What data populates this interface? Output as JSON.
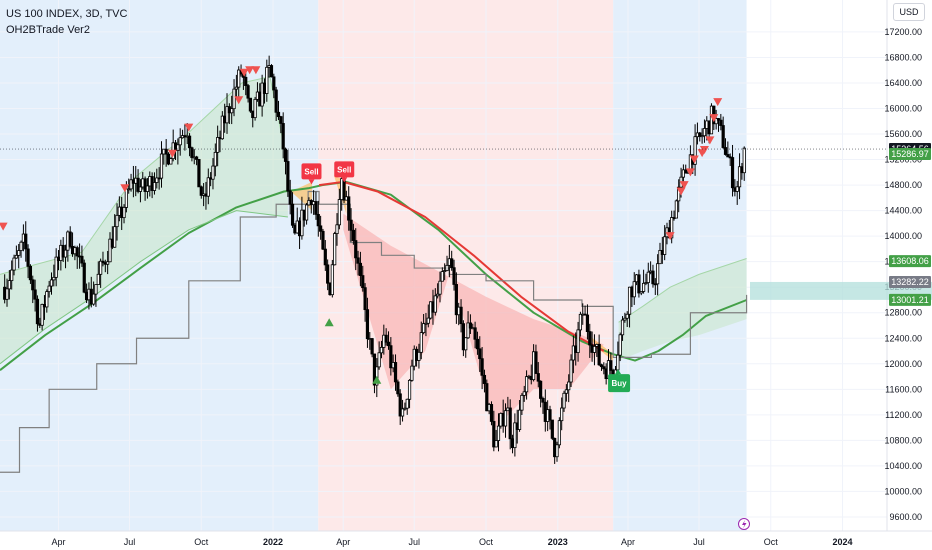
{
  "header": {
    "title": "US 100 INDEX, 3D, TVC",
    "indicator": "OH2BTrade Ver2",
    "currency": "USD"
  },
  "chart_data": {
    "type": "candlestick",
    "x_ticks": [
      {
        "label": "Apr",
        "date": "2021-04-01",
        "bold": false
      },
      {
        "label": "Jul",
        "date": "2021-07-01",
        "bold": false
      },
      {
        "label": "Oct",
        "date": "2021-10-01",
        "bold": false
      },
      {
        "label": "2022",
        "date": "2022-01-01",
        "bold": true
      },
      {
        "label": "Apr",
        "date": "2022-04-01",
        "bold": false
      },
      {
        "label": "Jul",
        "date": "2022-07-01",
        "bold": false
      },
      {
        "label": "Oct",
        "date": "2022-10-01",
        "bold": false
      },
      {
        "label": "2023",
        "date": "2023-01-01",
        "bold": true
      },
      {
        "label": "Apr",
        "date": "2023-04-01",
        "bold": false
      },
      {
        "label": "Jul",
        "date": "2023-07-01",
        "bold": false
      },
      {
        "label": "Oct",
        "date": "2023-10-01",
        "bold": false
      },
      {
        "label": "2024",
        "date": "2024-01-01",
        "bold": true
      }
    ],
    "y_ticks": [
      9600,
      10000,
      10400,
      10800,
      11200,
      11600,
      12000,
      12400,
      12800,
      13200,
      13600,
      14000,
      14400,
      14800,
      15200,
      15600,
      16000,
      16400,
      16800,
      17200
    ],
    "x_range": [
      "2021-01-16",
      "2024-02-27"
    ],
    "y_range": [
      9380,
      17700
    ],
    "background_zones": [
      {
        "start": "2021-01-16",
        "end": "2022-02-28",
        "color": "#e3effb"
      },
      {
        "start": "2022-02-28",
        "end": "2023-03-13",
        "color": "#fde9e9"
      },
      {
        "start": "2023-03-13",
        "end": "2023-08-31",
        "color": "#e3effb"
      }
    ],
    "price_path": [
      [
        "2021-01-22",
        13200
      ],
      [
        "2021-02-16",
        13900
      ],
      [
        "2021-03-08",
        12600
      ],
      [
        "2021-03-20",
        13300
      ],
      [
        "2021-04-16",
        14000
      ],
      [
        "2021-05-12",
        13000
      ],
      [
        "2021-06-01",
        13700
      ],
      [
        "2021-07-06",
        14900
      ],
      [
        "2021-07-20",
        14700
      ],
      [
        "2021-08-30",
        15500
      ],
      [
        "2021-09-13",
        15700
      ],
      [
        "2021-10-04",
        14500
      ],
      [
        "2021-10-30",
        15800
      ],
      [
        "2021-11-22",
        16600
      ],
      [
        "2021-12-03",
        15800
      ],
      [
        "2021-12-28",
        16600
      ],
      [
        "2022-01-14",
        15400
      ],
      [
        "2022-01-27",
        13900
      ],
      [
        "2022-02-20",
        14700
      ],
      [
        "2022-03-14",
        13100
      ],
      [
        "2022-03-29",
        15000
      ],
      [
        "2022-04-14",
        14000
      ],
      [
        "2022-05-12",
        11700
      ],
      [
        "2022-05-24",
        12500
      ],
      [
        "2022-06-16",
        11150
      ],
      [
        "2022-06-28",
        12000
      ],
      [
        "2022-08-16",
        13600
      ],
      [
        "2022-09-01",
        12300
      ],
      [
        "2022-09-13",
        12700
      ],
      [
        "2022-10-13",
        10700
      ],
      [
        "2022-10-27",
        11400
      ],
      [
        "2022-11-03",
        10800
      ],
      [
        "2022-12-01",
        12000
      ],
      [
        "2022-12-28",
        10700
      ],
      [
        "2023-02-02",
        12800
      ],
      [
        "2023-02-24",
        12000
      ],
      [
        "2023-03-13",
        11900
      ],
      [
        "2023-04-04",
        13200
      ],
      [
        "2023-05-04",
        13300
      ],
      [
        "2023-06-01",
        14500
      ],
      [
        "2023-06-18",
        15200
      ],
      [
        "2023-07-19",
        15900
      ],
      [
        "2023-08-01",
        15500
      ],
      [
        "2023-08-18",
        14700
      ],
      [
        "2023-08-28",
        15364
      ]
    ],
    "series": [
      {
        "name": "slow_ma",
        "color": "#43a047",
        "points": [
          [
            "2021-01-16",
            11900
          ],
          [
            "2021-03-15",
            12450
          ],
          [
            "2021-05-15",
            12950
          ],
          [
            "2021-07-15",
            13500
          ],
          [
            "2021-09-15",
            14050
          ],
          [
            "2021-11-15",
            14450
          ],
          [
            "2022-01-15",
            14700
          ],
          [
            "2022-02-15",
            14750
          ],
          [
            "2022-03-05",
            14800
          ],
          [
            "2022-04-05",
            14850
          ],
          [
            "2022-06-01",
            14650
          ],
          [
            "2022-08-01",
            14100
          ],
          [
            "2022-10-01",
            13400
          ],
          [
            "2022-12-01",
            12800
          ],
          [
            "2023-02-01",
            12350
          ],
          [
            "2023-03-13",
            12150
          ],
          [
            "2023-04-10",
            12050
          ],
          [
            "2023-05-10",
            12200
          ],
          [
            "2023-06-10",
            12450
          ],
          [
            "2023-07-10",
            12750
          ],
          [
            "2023-08-31",
            13000
          ]
        ]
      },
      {
        "name": "fast_ma",
        "color": "#e53935",
        "points": [
          [
            "2022-03-01",
            14800
          ],
          [
            "2022-04-01",
            14850
          ],
          [
            "2022-05-15",
            14700
          ],
          [
            "2022-07-15",
            14300
          ],
          [
            "2022-09-15",
            13700
          ],
          [
            "2022-11-15",
            13050
          ],
          [
            "2023-01-15",
            12500
          ],
          [
            "2023-03-01",
            12200
          ]
        ]
      },
      {
        "name": "band_upper",
        "color": "#81c784",
        "points": [
          [
            "2021-01-16",
            12000
          ],
          [
            "2021-03-15",
            12550
          ],
          [
            "2021-05-15",
            13050
          ],
          [
            "2021-07-15",
            13600
          ],
          [
            "2021-09-15",
            14100
          ],
          [
            "2021-11-15",
            14400
          ],
          [
            "2022-01-20",
            14300
          ]
        ]
      },
      {
        "name": "trailing_stop",
        "color": "#808080",
        "points": [
          [
            "2021-01-16",
            10300
          ],
          [
            "2021-02-10",
            11000
          ],
          [
            "2021-03-20",
            11600
          ],
          [
            "2021-05-20",
            12000
          ],
          [
            "2021-07-10",
            12400
          ],
          [
            "2021-09-15",
            13300
          ],
          [
            "2021-11-20",
            14300
          ],
          [
            "2022-01-05",
            14500
          ],
          [
            "2022-02-15",
            14700
          ],
          [
            "2022-03-01",
            14500
          ],
          [
            "2022-04-10",
            13900
          ],
          [
            "2022-05-20",
            13700
          ],
          [
            "2022-07-01",
            13500
          ],
          [
            "2022-08-15",
            13400
          ],
          [
            "2022-10-01",
            13300
          ],
          [
            "2022-12-01",
            13000
          ],
          [
            "2023-02-01",
            12900
          ],
          [
            "2023-03-13",
            12100
          ],
          [
            "2023-05-01",
            12150
          ],
          [
            "2023-06-20",
            12800
          ],
          [
            "2023-08-31",
            13080
          ]
        ]
      }
    ],
    "bull_cloud_1": {
      "upper": [
        [
          "2021-01-16",
          13400
        ],
        [
          "2021-03-01",
          13550
        ],
        [
          "2021-05-01",
          13750
        ],
        [
          "2021-07-06",
          14900
        ],
        [
          "2021-09-13",
          15600
        ],
        [
          "2021-11-22",
          16400
        ],
        [
          "2021-12-28",
          16500
        ],
        [
          "2022-01-20",
          15100
        ]
      ],
      "lower": [
        [
          "2021-01-16",
          12000
        ],
        [
          "2021-03-15",
          12550
        ],
        [
          "2021-05-15",
          13050
        ],
        [
          "2021-07-15",
          13600
        ],
        [
          "2021-09-15",
          14100
        ],
        [
          "2021-11-15",
          14400
        ],
        [
          "2022-01-20",
          14300
        ]
      ]
    },
    "bull_cloud_2": {
      "upper": [
        [
          "2023-03-20",
          12650
        ],
        [
          "2023-04-20",
          12900
        ],
        [
          "2023-05-25",
          13200
        ],
        [
          "2023-07-01",
          13400
        ],
        [
          "2023-08-31",
          13650
        ]
      ],
      "lower": [
        [
          "2023-03-20",
          12050
        ],
        [
          "2023-04-20",
          12200
        ],
        [
          "2023-05-25",
          12350
        ],
        [
          "2023-07-01",
          12450
        ],
        [
          "2023-08-31",
          12700
        ]
      ]
    },
    "bear_cloud": {
      "upper": [
        [
          "2022-04-01",
          14350
        ],
        [
          "2022-06-01",
          13850
        ],
        [
          "2022-08-01",
          13450
        ],
        [
          "2022-10-01",
          13050
        ],
        [
          "2022-12-01",
          12700
        ],
        [
          "2023-02-01",
          12450
        ],
        [
          "2023-03-01",
          12300
        ]
      ],
      "lower": [
        [
          "2022-04-01",
          14100
        ],
        [
          "2022-06-01",
          11600
        ],
        [
          "2022-07-15",
          12200
        ],
        [
          "2022-08-16",
          13450
        ],
        [
          "2022-10-13",
          11000
        ],
        [
          "2022-12-01",
          11600
        ],
        [
          "2023-01-15",
          11600
        ],
        [
          "2023-03-01",
          12300
        ]
      ]
    },
    "sell_markers": [
      [
        "2021-01-20",
        14150
      ],
      [
        "2021-06-25",
        14750
      ],
      [
        "2021-08-25",
        15290
      ],
      [
        "2021-09-15",
        15700
      ],
      [
        "2021-11-18",
        16130
      ],
      [
        "2021-11-25",
        16560
      ],
      [
        "2021-12-02",
        16600
      ],
      [
        "2021-12-10",
        16600
      ],
      [
        "2023-05-25",
        14000
      ],
      [
        "2023-06-08",
        14700
      ],
      [
        "2023-06-12",
        14800
      ],
      [
        "2023-06-20",
        15000
      ],
      [
        "2023-06-25",
        15200
      ],
      [
        "2023-07-05",
        15300
      ],
      [
        "2023-07-08",
        15350
      ],
      [
        "2023-07-15",
        15500
      ],
      [
        "2023-07-20",
        15850
      ],
      [
        "2023-07-25",
        16100
      ]
    ],
    "buy_markers": [
      [
        "2022-03-14",
        12650
      ],
      [
        "2022-05-14",
        11750
      ]
    ],
    "signals": [
      {
        "label": "Sell",
        "date": "2022-02-18",
        "price": 15000,
        "type": "sell"
      },
      {
        "label": "Sell",
        "date": "2022-04-01",
        "price": 15030,
        "type": "sell"
      },
      {
        "label": "Buy",
        "date": "2023-03-18",
        "price": 11900,
        "type": "buy"
      }
    ],
    "price_labels": [
      {
        "text": "15364.56",
        "value": 15364.56,
        "bg": "#131722"
      },
      {
        "text": "15286.97",
        "value": 15286.97,
        "bg": "#43a047"
      },
      {
        "text": "13608.06",
        "value": 13608.06,
        "bg": "#43a047"
      },
      {
        "text": "13282.22",
        "value": 13282.22,
        "bg": "#787b86"
      },
      {
        "text": "13001.21",
        "value": 13001.21,
        "bg": "#43a047"
      }
    ],
    "last_price": 15364.56,
    "zone": {
      "from": 13001.21,
      "to": 13282.22,
      "color": "#b2dfdb"
    }
  }
}
